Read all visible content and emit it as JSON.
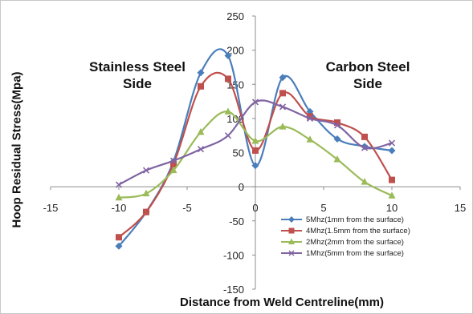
{
  "chart_data": {
    "type": "line",
    "title": "",
    "xlabel": "Distance from Weld Centreline(mm)",
    "ylabel": "Hoop Residual Stress(Mpa)",
    "xlim": [
      -15,
      15
    ],
    "ylim": [
      -150,
      250
    ],
    "x_ticks": [
      "-15",
      "-10",
      "-5",
      "0",
      "5",
      "10",
      "15"
    ],
    "y_ticks": [
      "-150",
      "-100",
      "-50",
      "0",
      "50",
      "100",
      "150",
      "200",
      "250"
    ],
    "grid": false,
    "legend_position": "bottom-right",
    "annotations": {
      "left": [
        "Stainless Steel",
        "Side"
      ],
      "right": [
        "Carbon Steel",
        "Side"
      ]
    },
    "series": [
      {
        "name": "5Mhz(1mm from the surface)",
        "color": "#4a7ebb",
        "marker": "diamond",
        "x": [
          -10,
          -8,
          -6,
          -4,
          -2,
          0,
          2,
          4,
          6,
          8,
          10
        ],
        "y": [
          -87,
          -37,
          37,
          167,
          192,
          31,
          160,
          110,
          70,
          59,
          53
        ]
      },
      {
        "name": "4Mhz(1.5mm from the surface)",
        "color": "#c0504d",
        "marker": "square",
        "x": [
          -10,
          -8,
          -6,
          -4,
          -2,
          0,
          2,
          4,
          6,
          8,
          10
        ],
        "y": [
          -74,
          -37,
          33,
          147,
          158,
          53,
          137,
          103,
          94,
          73,
          10
        ]
      },
      {
        "name": "2Mhz(2mm from the surface)",
        "color": "#9bbb59",
        "marker": "triangle",
        "x": [
          -10,
          -8,
          -6,
          -4,
          -2,
          0,
          2,
          4,
          6,
          8,
          10
        ],
        "y": [
          -16,
          -10,
          24,
          80,
          110,
          67,
          88,
          69,
          40,
          7,
          -13
        ]
      },
      {
        "name": "1Mhz(5mm from the surface)",
        "color": "#8064a2",
        "marker": "x",
        "x": [
          -10,
          -8,
          -6,
          -4,
          -2,
          0,
          2,
          4,
          6,
          8,
          10
        ],
        "y": [
          3,
          24,
          38,
          55,
          75,
          124,
          117,
          100,
          90,
          57,
          64
        ]
      }
    ]
  }
}
